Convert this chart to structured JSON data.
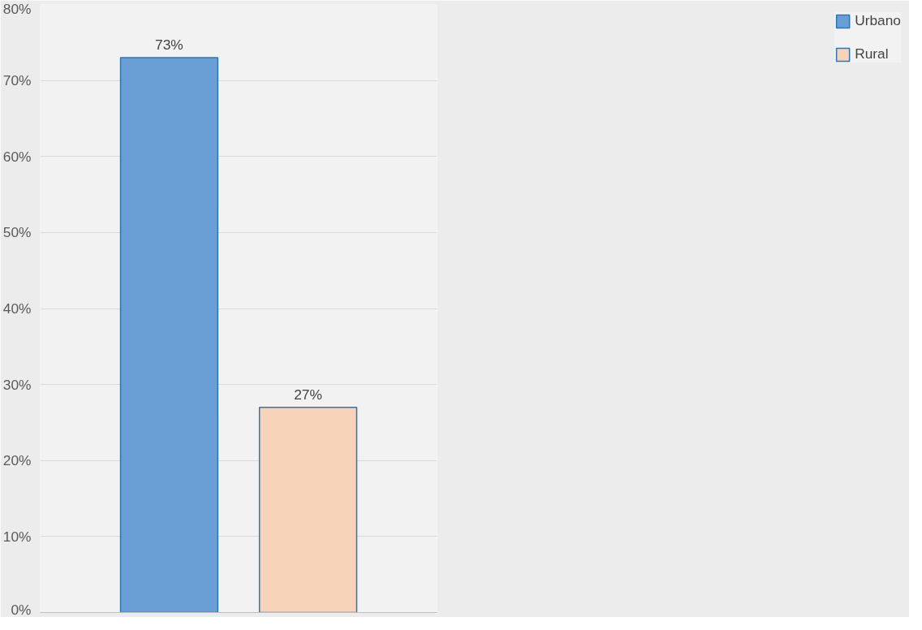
{
  "chart_data": {
    "type": "bar",
    "categories": [
      null
    ],
    "series": [
      {
        "name": "Urbano",
        "color": "#6a9fd6",
        "values": [
          73
        ],
        "value_labels": [
          "73%"
        ]
      },
      {
        "name": "Rural",
        "color": "#f6d3b9",
        "values": [
          27
        ],
        "value_labels": [
          "27%"
        ]
      }
    ],
    "ylim": [
      0,
      80
    ],
    "yticks": [
      {
        "value": 0,
        "label": "0%"
      },
      {
        "value": 10,
        "label": "10%"
      },
      {
        "value": 20,
        "label": "20%"
      },
      {
        "value": 30,
        "label": "30%"
      },
      {
        "value": 40,
        "label": "40%"
      },
      {
        "value": 50,
        "label": "50%"
      },
      {
        "value": 60,
        "label": "60%"
      },
      {
        "value": 70,
        "label": "70%"
      },
      {
        "value": 80,
        "label": "80%"
      }
    ],
    "grid": "y",
    "legend": "right"
  }
}
